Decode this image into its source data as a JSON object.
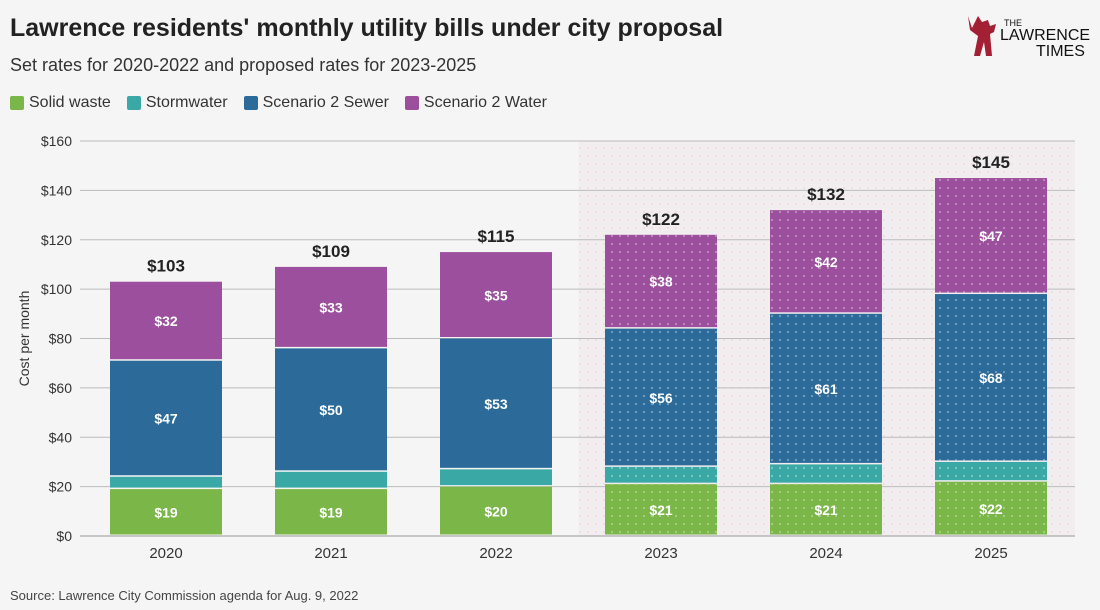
{
  "title": "Lawrence residents' monthly utility bills under city proposal",
  "subtitle": "Set rates for 2020-2022 and proposed rates for 2023-2025",
  "source": "Source: Lawrence City Commission agenda for Aug. 9, 2022",
  "logo_text": "THE LAWRENCE TIMES",
  "colors": {
    "Solid waste": "#7ab648",
    "Stormwater": "#3aa9a6",
    "Scenario 2 Sewer": "#2c6b99",
    "Scenario 2 Water": "#9b4f9c",
    "logo": "#a31f34"
  },
  "chart_data": {
    "type": "bar",
    "stacked": true,
    "categories": [
      "2020",
      "2021",
      "2022",
      "2023",
      "2024",
      "2025"
    ],
    "projected_categories": [
      "2023",
      "2024",
      "2025"
    ],
    "series": [
      {
        "name": "Solid waste",
        "values": [
          19,
          19,
          20,
          21,
          21,
          22
        ],
        "labels": [
          "$19",
          "$19",
          "$20",
          "$21",
          "$21",
          "$22"
        ]
      },
      {
        "name": "Stormwater",
        "values": [
          5,
          7,
          7,
          7,
          8,
          8
        ],
        "labels": [
          "",
          "",
          "",
          "",
          "",
          ""
        ]
      },
      {
        "name": "Scenario 2 Sewer",
        "values": [
          47,
          50,
          53,
          56,
          61,
          68
        ],
        "labels": [
          "$47",
          "$50",
          "$53",
          "$56",
          "$61",
          "$68"
        ]
      },
      {
        "name": "Scenario 2 Water",
        "values": [
          32,
          33,
          35,
          38,
          42,
          47
        ],
        "labels": [
          "$32",
          "$33",
          "$35",
          "$38",
          "$42",
          "$47"
        ]
      }
    ],
    "totals": [
      "$103",
      "$109",
      "$115",
      "$122",
      "$132",
      "$145"
    ],
    "ylabel": "Cost per month",
    "xlabel": "",
    "ylim": [
      0,
      160
    ],
    "yticks": [
      "$0",
      "$20",
      "$40",
      "$60",
      "$80",
      "$100",
      "$120",
      "$140",
      "$160"
    ],
    "grid": true,
    "legend": "top-left"
  }
}
